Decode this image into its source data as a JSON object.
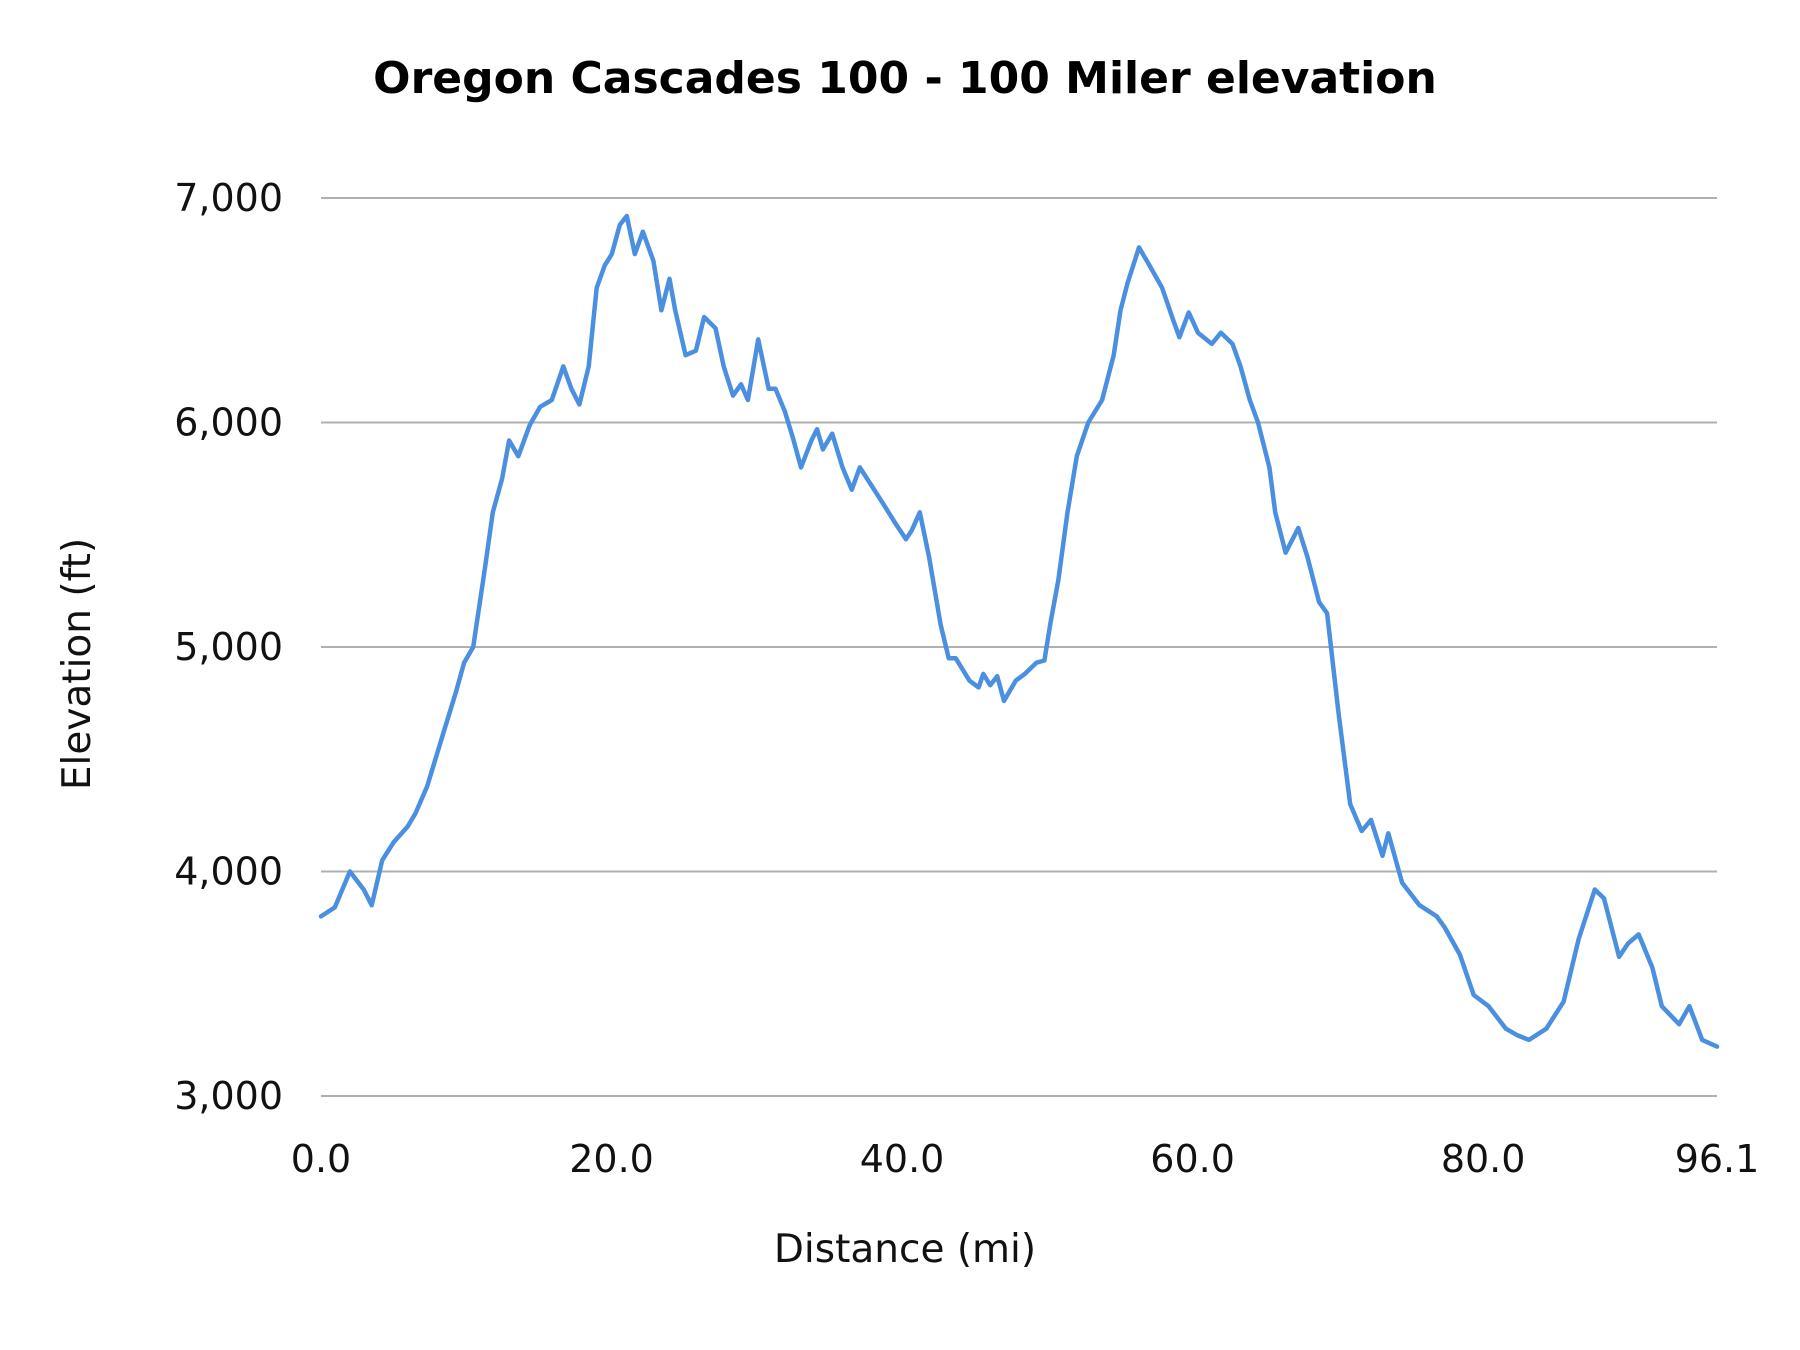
{
  "chart_data": {
    "type": "line",
    "title": "Oregon Cascades 100 - 100 Miler elevation",
    "xlabel": "Distance (mi)",
    "ylabel": "Elevation (ft)",
    "xlim": [
      0,
      96.1
    ],
    "ylim": [
      3000,
      7000
    ],
    "x_ticks": [
      "0.0",
      "20.0",
      "40.0",
      "60.0",
      "80.0",
      "96.1"
    ],
    "x_tick_values": [
      0,
      20,
      40,
      60,
      80,
      96.1
    ],
    "y_ticks": [
      "3,000",
      "4,000",
      "5,000",
      "6,000",
      "7,000"
    ],
    "y_tick_values": [
      3000,
      4000,
      5000,
      6000,
      7000
    ],
    "grid": "horizontal",
    "line_color": "#4a8fe0",
    "grid_color": "#b0b0b0",
    "series": [
      {
        "x": [
          0,
          0.95,
          1.99,
          2.94,
          3.49,
          4.21,
          5.0,
          5.96,
          6.51,
          7.31,
          8.34,
          9.29,
          9.85,
          10.48,
          11.28,
          11.83,
          12.47,
          12.95,
          13.58,
          14.38,
          15.09,
          15.89,
          16.68,
          17.24,
          17.79,
          18.43,
          18.98,
          19.54,
          20.02,
          20.57,
          21.05,
          21.6,
          22.16,
          22.88,
          23.43,
          23.99,
          24.38,
          25.1,
          25.81,
          26.37,
          27.16,
          27.72,
          28.36,
          28.91,
          29.39,
          30.1,
          30.82,
          31.29,
          31.93,
          32.49,
          33.04,
          33.76,
          34.15,
          34.55,
          35.19,
          35.9,
          36.54,
          37.09,
          37.89,
          38.68,
          39.55,
          40.27,
          40.67,
          41.22,
          41.86,
          42.65,
          43.21,
          43.69,
          44.64,
          45.27,
          45.59,
          46.07,
          46.55,
          47.02,
          47.82,
          48.45,
          49.25,
          49.8,
          50.2,
          50.76,
          51.39,
          52.03,
          52.82,
          53.77,
          54.57,
          55.04,
          55.52,
          56.31,
          57.03,
          57.9,
          58.7,
          59.09,
          59.73,
          60.37,
          61.32,
          61.95,
          62.75,
          63.3,
          63.94,
          64.5,
          65.29,
          65.69,
          66.4,
          67.28,
          67.91,
          68.71,
          69.26,
          70.06,
          70.85,
          71.64,
          72.28,
          73.07,
          73.47,
          74.42,
          75.62,
          76.81,
          77.36,
          78.4,
          79.35,
          80.38,
          81.57,
          82.37,
          83.16,
          84.35,
          85.54,
          86.58,
          87.69,
          88.32,
          89.36,
          89.99,
          90.71,
          91.66,
          92.3,
          93.49,
          94.2,
          95.08,
          96.1
        ],
        "y": [
          3800,
          3840,
          4000,
          3920,
          3850,
          4050,
          4130,
          4200,
          4260,
          4380,
          4600,
          4800,
          4930,
          5000,
          5350,
          5600,
          5750,
          5920,
          5850,
          5990,
          6070,
          6100,
          6250,
          6150,
          6080,
          6250,
          6600,
          6700,
          6750,
          6880,
          6920,
          6750,
          6850,
          6720,
          6500,
          6640,
          6500,
          6300,
          6320,
          6470,
          6420,
          6250,
          6120,
          6170,
          6100,
          6370,
          6150,
          6150,
          6050,
          5930,
          5800,
          5920,
          5970,
          5880,
          5950,
          5800,
          5700,
          5800,
          5720,
          5640,
          5550,
          5480,
          5520,
          5600,
          5400,
          5100,
          4950,
          4950,
          4850,
          4820,
          4880,
          4830,
          4870,
          4760,
          4850,
          4880,
          4930,
          4940,
          5100,
          5300,
          5600,
          5850,
          6000,
          6100,
          6300,
          6500,
          6620,
          6780,
          6700,
          6600,
          6450,
          6380,
          6490,
          6400,
          6350,
          6400,
          6350,
          6250,
          6100,
          6000,
          5800,
          5600,
          5420,
          5530,
          5400,
          5200,
          5150,
          4700,
          4300,
          4180,
          4230,
          4070,
          4170,
          3950,
          3850,
          3800,
          3750,
          3630,
          3450,
          3400,
          3300,
          3270,
          3250,
          3300,
          3420,
          3700,
          3920,
          3880,
          3620,
          3680,
          3720,
          3570,
          3400,
          3320,
          3400,
          3250,
          3220
        ]
      }
    ]
  }
}
